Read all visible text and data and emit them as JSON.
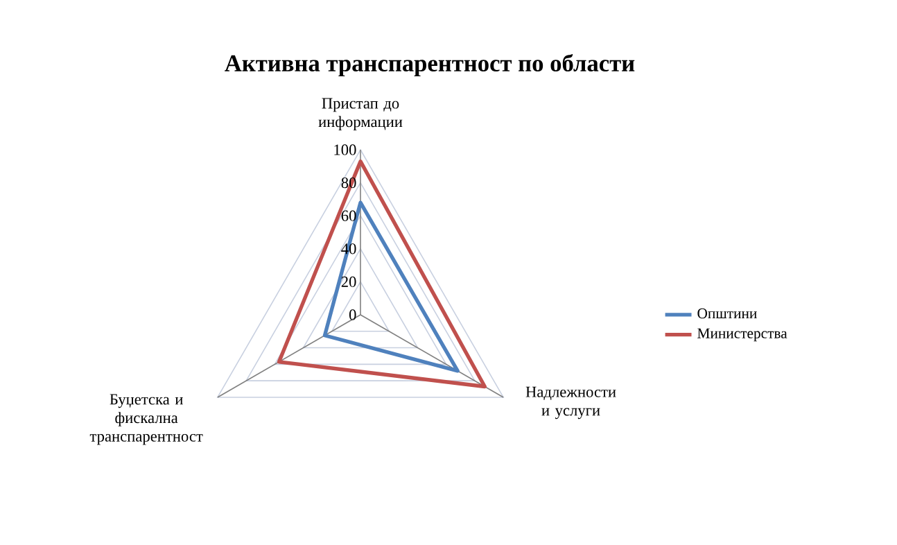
{
  "chart_data": {
    "type": "radar",
    "title": "Активна транспарентност по области",
    "categories": [
      "Пристап до информации",
      "Надлежности и услуги",
      "Буџетска и фискална транспарентност"
    ],
    "ylim": [
      0,
      100
    ],
    "yticks": [
      0,
      20,
      40,
      60,
      80,
      100
    ],
    "grid": true,
    "legend": "right",
    "marker": "none",
    "series": [
      {
        "name": "Општини",
        "color": "#4f81bd",
        "values": [
          68,
          68,
          25
        ]
      },
      {
        "name": "Министерства",
        "color": "#c0504d",
        "values": [
          93,
          87,
          57
        ]
      }
    ]
  }
}
